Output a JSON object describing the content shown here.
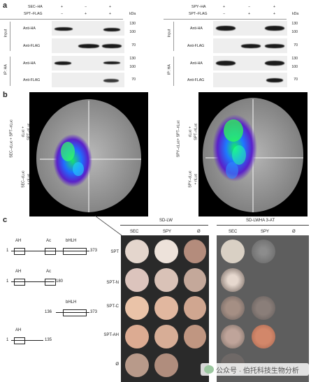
{
  "panel_a": {
    "label": "a",
    "left": {
      "conditions": [
        {
          "name": "SEC–HA",
          "values": [
            "+",
            "−",
            "+"
          ]
        },
        {
          "name": "SPT–FLAG",
          "values": [
            "−",
            "+",
            "+"
          ]
        }
      ],
      "rows": [
        {
          "section": "Input",
          "antibody": "Anti-HA",
          "markers": [
            "130",
            "100"
          ]
        },
        {
          "section": "Input",
          "antibody": "Anti-FLAG",
          "markers": [
            "70"
          ]
        },
        {
          "section": "IP: HA",
          "antibody": "Anti-HA",
          "markers": [
            "130",
            "100"
          ]
        },
        {
          "section": "IP: HA",
          "antibody": "Anti-FLAG",
          "markers": [
            "70"
          ]
        }
      ]
    },
    "right": {
      "conditions": [
        {
          "name": "SPY–HA",
          "values": [
            "+",
            "−",
            "+"
          ]
        },
        {
          "name": "SPT–FLAG",
          "values": [
            "−",
            "+",
            "+"
          ]
        }
      ],
      "rows": [
        {
          "section": "Input",
          "antibody": "Anti-HA",
          "markers": [
            "130",
            "100"
          ]
        },
        {
          "section": "Input",
          "antibody": "Anti-FLAG",
          "markers": [
            "70"
          ]
        },
        {
          "section": "IP: HA",
          "antibody": "Anti-HA",
          "markers": [
            "130",
            "100"
          ]
        },
        {
          "section": "IP: HA",
          "antibody": "Anti-FLAG",
          "markers": [
            "70"
          ]
        }
      ]
    },
    "kda": "kDa",
    "section_input": "Input",
    "section_ip": "IP: HA"
  },
  "panel_b": {
    "label": "b",
    "left_leaf": {
      "upper_label_line1": "SEC–cLuc + SPT–nLuc",
      "upper_label_line2": "cLuc +",
      "upper_label_line3": "SPT–nLuc",
      "lower_label_line1": "SEC–cLuc",
      "lower_label_line2": "+ nLuc"
    },
    "right_leaf": {
      "upper_label_line1": "SPY–cLuc+ SPT–nLuc",
      "upper_label_line2": "cLuc +",
      "upper_label_line3": "SPT–nLuc",
      "lower_label_line1": "SPY–cLuc",
      "lower_label_line2": "+ nLuc"
    }
  },
  "panel_c": {
    "label": "c",
    "constructs": [
      {
        "name": "SPT",
        "start": "1",
        "end": "373",
        "domains": [
          "AH",
          "Ac",
          "bHLH"
        ]
      },
      {
        "name": "SPT-N",
        "start": "1",
        "end": "180",
        "domains": [
          "AH",
          "Ac"
        ]
      },
      {
        "name": "SPT-C",
        "start": "136",
        "end": "373",
        "domains": [
          "bHLH"
        ]
      },
      {
        "name": "SPT-AH",
        "start": "1",
        "end": "135",
        "domains": [
          "AH"
        ]
      },
      {
        "name": "Ø",
        "start": "",
        "end": "",
        "domains": []
      }
    ],
    "media_left": "SD-LW",
    "media_right": "SD-LWHA 3-AT",
    "columns": [
      "SEC",
      "SPY",
      "Ø"
    ]
  },
  "watermark": "公众号 · 伯托科技生物分析"
}
